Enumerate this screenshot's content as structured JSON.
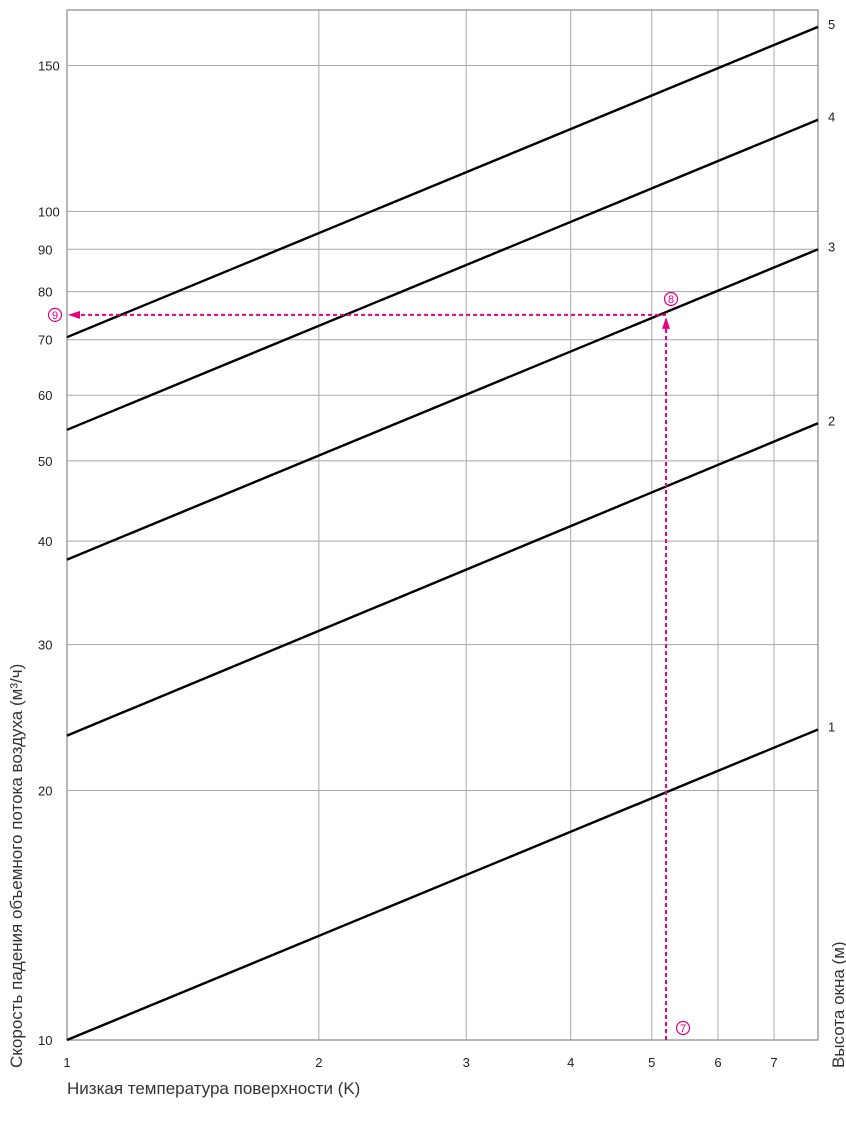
{
  "chart_data": {
    "type": "line",
    "x_scale": "log",
    "y_scale": "log",
    "xlim": [
      1,
      7.9
    ],
    "ylim": [
      10,
      175
    ],
    "grid": true,
    "xlabel": "Низкая температура поверхности (K)",
    "ylabel": "Скорость падения объемного потока воздуха (м³/ч)",
    "right_label": "Высота окна (м)",
    "x_ticks": [
      1,
      2,
      3,
      4,
      5,
      6,
      7
    ],
    "y_ticks": [
      10,
      20,
      30,
      40,
      50,
      60,
      70,
      80,
      90,
      100,
      150
    ],
    "series": [
      {
        "name": "1",
        "x": [
          1,
          7.9
        ],
        "y": [
          10,
          23.7
        ]
      },
      {
        "name": "2",
        "x": [
          1,
          7.9
        ],
        "y": [
          23.3,
          55.5
        ]
      },
      {
        "name": "3",
        "x": [
          1,
          7.9
        ],
        "y": [
          38,
          90
        ]
      },
      {
        "name": "4",
        "x": [
          1,
          7.9
        ],
        "y": [
          54.5,
          129
        ]
      },
      {
        "name": "5",
        "x": [
          1,
          7.9
        ],
        "y": [
          70.5,
          167
        ]
      }
    ],
    "colors": {
      "lines": "#000000",
      "grid": "#a8a8a8",
      "annotation": "#e6007e"
    },
    "annotation_path": {
      "x_value": 5.2,
      "y_value": 75,
      "steps": [
        "⑦",
        "⑧",
        "⑨"
      ]
    }
  }
}
